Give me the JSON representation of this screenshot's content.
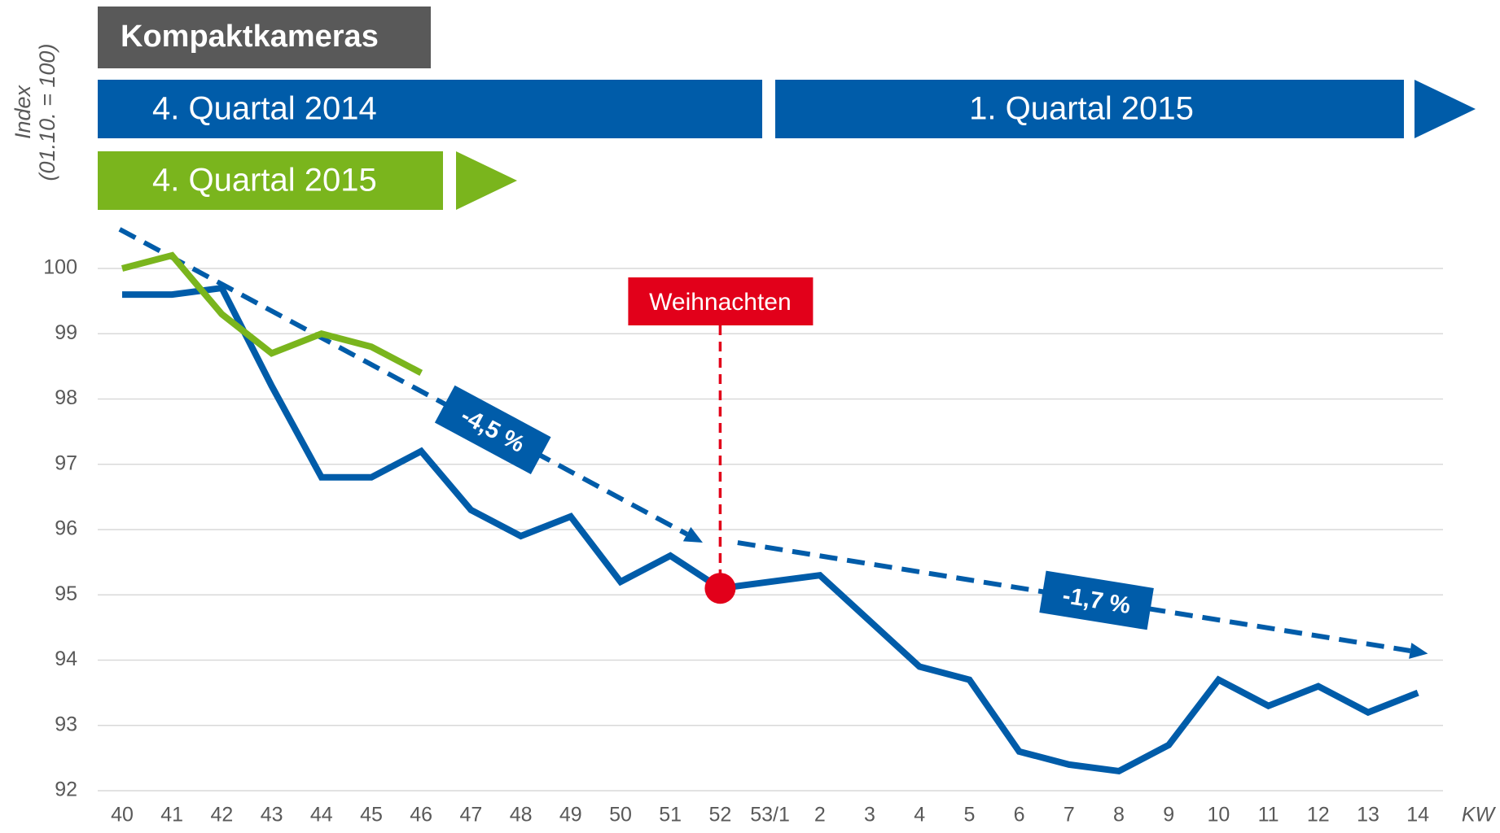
{
  "chart_data": {
    "type": "line",
    "title": "Kompaktkameras",
    "y_label": [
      "Index",
      "(01.10. = 100)"
    ],
    "x_unit": "KW",
    "banners": [
      {
        "text": "4. Quartal 2014",
        "color": "#005ca9"
      },
      {
        "text": "1. Quartal 2015",
        "color": "#005ca9"
      },
      {
        "text": "4. Quartal 2015",
        "color": "#7ab51d"
      }
    ],
    "categories": [
      "40",
      "41",
      "42",
      "43",
      "44",
      "45",
      "46",
      "47",
      "48",
      "49",
      "50",
      "51",
      "52",
      "53/1",
      "2",
      "3",
      "4",
      "5",
      "6",
      "7",
      "8",
      "9",
      "10",
      "11",
      "12",
      "13",
      "14"
    ],
    "series": [
      {
        "color": "#005ca9",
        "values": [
          99.6,
          99.6,
          99.7,
          98.2,
          96.8,
          96.8,
          97.2,
          96.3,
          95.9,
          96.2,
          95.2,
          95.6,
          95.1,
          95.2,
          95.3,
          94.6,
          93.9,
          93.7,
          92.6,
          92.4,
          92.3,
          92.7,
          93.7,
          93.3,
          93.6,
          93.2,
          93.5
        ]
      },
      {
        "color": "#7ab51d",
        "values": [
          100.0,
          100.2,
          99.3,
          98.7,
          99.0,
          98.8,
          98.4,
          null,
          null,
          null,
          null,
          null,
          null,
          null,
          null,
          null,
          null,
          null,
          null,
          null,
          null,
          null,
          null,
          null,
          null,
          null,
          null
        ]
      }
    ],
    "trends": [
      {
        "label": "-4,5 %",
        "from_category": "40",
        "to_category": "52",
        "from_value": 100.6,
        "to_value": 95.8,
        "color": "#005ca9"
      },
      {
        "label": "-1,7 %",
        "from_category": "52",
        "to_category": "14",
        "from_value": 95.8,
        "to_value": 94.1,
        "color": "#005ca9"
      }
    ],
    "annotation": {
      "text": "Weihnachten",
      "category": "52",
      "value": 95.1,
      "color": "#e2001a"
    },
    "ylim": [
      92,
      100
    ],
    "yticks": [
      92,
      93,
      94,
      95,
      96,
      97,
      98,
      99,
      100
    ],
    "grid": true
  }
}
